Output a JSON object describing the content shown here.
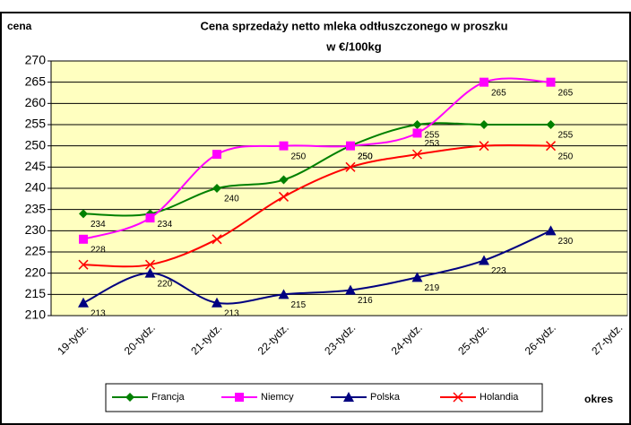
{
  "chart_data": {
    "type": "line",
    "title": "Cena sprzedaży netto mleka odtłuszczonego w proszku",
    "subtitle": "w €/100kg",
    "y_label": "cena",
    "x_label": "okres",
    "categories": [
      "19-tydz.",
      "20-tydz.",
      "21-tydz.",
      "22-tydz.",
      "23-tydz.",
      "24-tydz.",
      "25-tydz.",
      "26-tydz.",
      "27-tydz."
    ],
    "ylim": [
      210,
      270
    ],
    "yticks": [
      210,
      215,
      220,
      225,
      230,
      235,
      240,
      245,
      250,
      255,
      260,
      265,
      270
    ],
    "grid": true,
    "legend": "bottom",
    "series": [
      {
        "name": "Francja",
        "color": "#008000",
        "marker": "diamond",
        "values": [
          234,
          234,
          240,
          242,
          250,
          255,
          255,
          255,
          null
        ],
        "value_labels": [
          "234",
          "234",
          "240",
          null,
          "250",
          "255",
          null,
          "255",
          null
        ]
      },
      {
        "name": "Niemcy",
        "color": "#ff00ff",
        "marker": "square",
        "values": [
          228,
          233,
          248,
          250,
          250,
          253,
          265,
          265,
          null
        ],
        "value_labels": [
          "228",
          null,
          null,
          "250",
          "250",
          "253",
          "265",
          "265",
          null
        ]
      },
      {
        "name": "Polska",
        "color": "#000080",
        "marker": "triangle",
        "values": [
          213,
          220,
          213,
          215,
          216,
          219,
          223,
          230,
          null
        ],
        "value_labels": [
          "213",
          "220",
          "213",
          "215",
          "216",
          "219",
          "223",
          "230",
          null
        ]
      },
      {
        "name": "Holandia",
        "color": "#ff0000",
        "marker": "x",
        "values": [
          222,
          222,
          228,
          238,
          245,
          248,
          250,
          250,
          null
        ],
        "value_labels": [
          null,
          null,
          null,
          null,
          null,
          null,
          null,
          "250",
          null
        ]
      }
    ]
  }
}
